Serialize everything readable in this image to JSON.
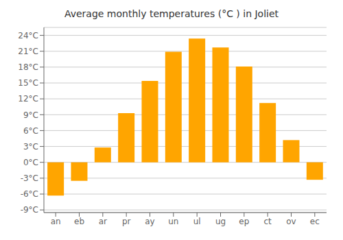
{
  "chart_data": {
    "type": "bar",
    "title": "Average monthly temperatures (°C ) in Joliet",
    "categories": [
      "an",
      "eb",
      "ar",
      "pr",
      "ay",
      "un",
      "ul",
      "ug",
      "ep",
      "ct",
      "ov",
      "ec"
    ],
    "values": [
      -6.3,
      -3.5,
      2.8,
      9.3,
      15.4,
      20.9,
      23.4,
      21.7,
      18.1,
      11.2,
      4.2,
      -3.3
    ],
    "color": "#FFA500",
    "ylim": [
      -9.5,
      25.5
    ],
    "yticks": [
      {
        "value": -9,
        "label": "-9°C"
      },
      {
        "value": -6,
        "label": "-6°C"
      },
      {
        "value": -3,
        "label": "-3°C"
      },
      {
        "value": 0,
        "label": "0°C"
      },
      {
        "value": 3,
        "label": "3°C"
      },
      {
        "value": 6,
        "label": "6°C"
      },
      {
        "value": 9,
        "label": "9°C"
      },
      {
        "value": 12,
        "label": "12°C"
      },
      {
        "value": 15,
        "label": "15°C"
      },
      {
        "value": 18,
        "label": "18°C"
      },
      {
        "value": 21,
        "label": "21°C"
      },
      {
        "value": 24,
        "label": "24°C"
      }
    ],
    "grid": true
  }
}
